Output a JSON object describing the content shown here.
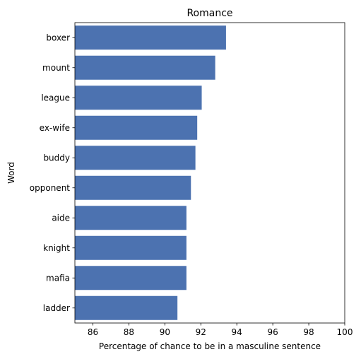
{
  "chart_data": {
    "type": "bar",
    "orientation": "horizontal",
    "title": "Romance",
    "xlabel": "Percentage of chance to be in a masculine sentence",
    "ylabel": "Word",
    "xlim": [
      85,
      100
    ],
    "xticks": [
      86,
      88,
      90,
      92,
      94,
      96,
      98,
      100
    ],
    "grid": false,
    "categories": [
      "boxer",
      "mount",
      "league",
      "ex-wife",
      "buddy",
      "opponent",
      "aide",
      "knight",
      "mafia",
      "ladder"
    ],
    "values": [
      93.4,
      92.8,
      92.05,
      91.8,
      91.7,
      91.45,
      91.2,
      91.2,
      91.2,
      90.7
    ],
    "bar_color": "#4c72b0"
  }
}
